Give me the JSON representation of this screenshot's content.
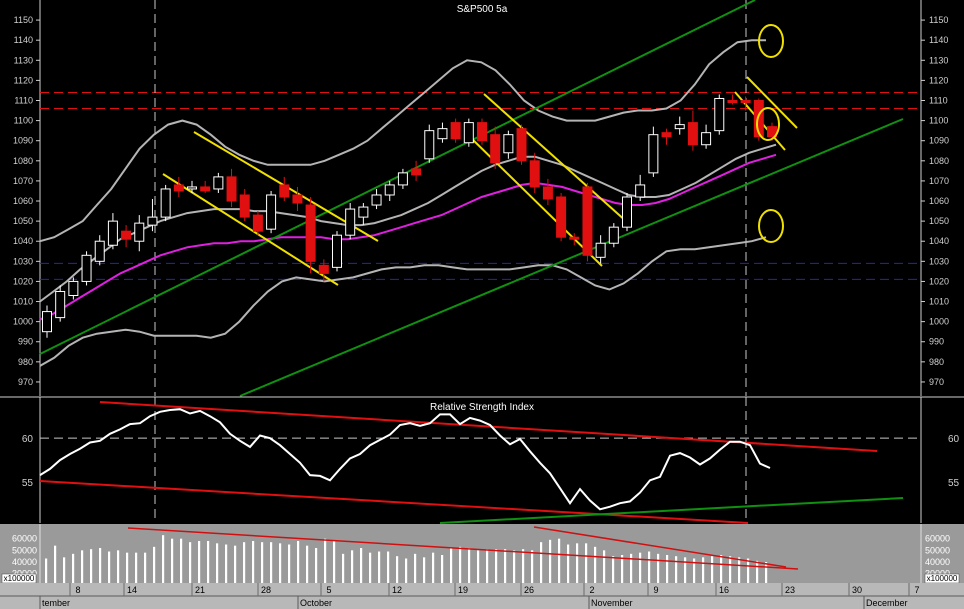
{
  "colors": {
    "background": "#000000",
    "axis_text": "#d0d0d0",
    "bullish_candle": "#ffffff",
    "bearish_candle": "#e01010",
    "bollinger": "#b4b4b4",
    "moving_average": "#e020e0",
    "trend_channel": "#109010",
    "flag_lines": "#f0e000",
    "resistance": "#e01010",
    "support": "#2020d0",
    "rsi_line": "#ffffff",
    "volume_panel_bg": "#9a9a9a",
    "volume_bars": "#ffffff",
    "volume_trend": "#d01010",
    "date_strip_bg": "#b8b8b8"
  },
  "chart_data": [
    {
      "type": "candlestick",
      "title": "S&P500 5a",
      "ylim": [
        965,
        1158
      ],
      "yticks": [
        970,
        980,
        990,
        1000,
        1010,
        1020,
        1030,
        1040,
        1050,
        1060,
        1070,
        1080,
        1090,
        1100,
        1110,
        1120,
        1130,
        1140,
        1150
      ],
      "candles": [
        {
          "o": 995,
          "h": 1008,
          "l": 992,
          "c": 1005
        },
        {
          "o": 1002,
          "h": 1018,
          "l": 1000,
          "c": 1015
        },
        {
          "o": 1013,
          "h": 1022,
          "l": 1011,
          "c": 1020
        },
        {
          "o": 1020,
          "h": 1035,
          "l": 1018,
          "c": 1033
        },
        {
          "o": 1030,
          "h": 1043,
          "l": 1028,
          "c": 1040
        },
        {
          "o": 1038,
          "h": 1054,
          "l": 1036,
          "c": 1050
        },
        {
          "o": 1045,
          "h": 1048,
          "l": 1037,
          "c": 1041
        },
        {
          "o": 1040,
          "h": 1053,
          "l": 1035,
          "c": 1049
        },
        {
          "o": 1048,
          "h": 1061,
          "l": 1045,
          "c": 1052
        },
        {
          "o": 1052,
          "h": 1068,
          "l": 1050,
          "c": 1066
        },
        {
          "o": 1068,
          "h": 1072,
          "l": 1062,
          "c": 1065
        },
        {
          "o": 1066,
          "h": 1070,
          "l": 1064,
          "c": 1067
        },
        {
          "o": 1067,
          "h": 1070,
          "l": 1064,
          "c": 1065
        },
        {
          "o": 1066,
          "h": 1074,
          "l": 1064,
          "c": 1072
        },
        {
          "o": 1072,
          "h": 1076,
          "l": 1057,
          "c": 1060
        },
        {
          "o": 1063,
          "h": 1066,
          "l": 1050,
          "c": 1052
        },
        {
          "o": 1053,
          "h": 1055,
          "l": 1043,
          "c": 1045
        },
        {
          "o": 1046,
          "h": 1065,
          "l": 1044,
          "c": 1063
        },
        {
          "o": 1068,
          "h": 1072,
          "l": 1060,
          "c": 1062
        },
        {
          "o": 1063,
          "h": 1067,
          "l": 1055,
          "c": 1059
        },
        {
          "o": 1058,
          "h": 1062,
          "l": 1024,
          "c": 1030
        },
        {
          "o": 1028,
          "h": 1031,
          "l": 1020,
          "c": 1024
        },
        {
          "o": 1027,
          "h": 1045,
          "l": 1025,
          "c": 1043
        },
        {
          "o": 1043,
          "h": 1059,
          "l": 1041,
          "c": 1056
        },
        {
          "o": 1052,
          "h": 1059,
          "l": 1048,
          "c": 1057
        },
        {
          "o": 1058,
          "h": 1066,
          "l": 1056,
          "c": 1063
        },
        {
          "o": 1063,
          "h": 1070,
          "l": 1060,
          "c": 1068
        },
        {
          "o": 1068,
          "h": 1076,
          "l": 1066,
          "c": 1074
        },
        {
          "o": 1076,
          "h": 1080,
          "l": 1070,
          "c": 1073
        },
        {
          "o": 1081,
          "h": 1098,
          "l": 1079,
          "c": 1095
        },
        {
          "o": 1091,
          "h": 1099,
          "l": 1089,
          "c": 1096
        },
        {
          "o": 1099,
          "h": 1101,
          "l": 1089,
          "c": 1091
        },
        {
          "o": 1089,
          "h": 1101,
          "l": 1087,
          "c": 1099
        },
        {
          "o": 1099,
          "h": 1101,
          "l": 1088,
          "c": 1090
        },
        {
          "o": 1093,
          "h": 1097,
          "l": 1076,
          "c": 1079
        },
        {
          "o": 1084,
          "h": 1095,
          "l": 1081,
          "c": 1093
        },
        {
          "o": 1096,
          "h": 1098,
          "l": 1078,
          "c": 1080
        },
        {
          "o": 1080,
          "h": 1084,
          "l": 1064,
          "c": 1067
        },
        {
          "o": 1067,
          "h": 1071,
          "l": 1058,
          "c": 1061
        },
        {
          "o": 1062,
          "h": 1064,
          "l": 1040,
          "c": 1042
        },
        {
          "o": 1042,
          "h": 1044,
          "l": 1038,
          "c": 1041
        },
        {
          "o": 1067,
          "h": 1069,
          "l": 1030,
          "c": 1033
        },
        {
          "o": 1032,
          "h": 1043,
          "l": 1029,
          "c": 1039
        },
        {
          "o": 1039,
          "h": 1049,
          "l": 1037,
          "c": 1047
        },
        {
          "o": 1047,
          "h": 1064,
          "l": 1045,
          "c": 1062
        },
        {
          "o": 1062,
          "h": 1073,
          "l": 1060,
          "c": 1068
        },
        {
          "o": 1074,
          "h": 1097,
          "l": 1072,
          "c": 1093
        },
        {
          "o": 1094,
          "h": 1096,
          "l": 1088,
          "c": 1092
        },
        {
          "o": 1096,
          "h": 1102,
          "l": 1093,
          "c": 1098
        },
        {
          "o": 1099,
          "h": 1105,
          "l": 1085,
          "c": 1088
        },
        {
          "o": 1088,
          "h": 1098,
          "l": 1086,
          "c": 1094
        },
        {
          "o": 1095,
          "h": 1113,
          "l": 1093,
          "c": 1111
        },
        {
          "o": 1110,
          "h": 1113,
          "l": 1108,
          "c": 1109
        },
        {
          "o": 1110,
          "h": 1112,
          "l": 1105,
          "c": 1109
        },
        {
          "o": 1110,
          "h": 1111,
          "l": 1090,
          "c": 1092
        },
        {
          "o": 1097,
          "h": 1099,
          "l": 1090,
          "c": 1092
        }
      ],
      "overlays": {
        "moving_average": [
          1001,
          1004,
          1008,
          1012,
          1016,
          1020,
          1024,
          1027,
          1030,
          1033,
          1035,
          1037,
          1038,
          1039,
          1039,
          1040,
          1040,
          1041,
          1042,
          1042,
          1042,
          1042,
          1041,
          1041,
          1042,
          1043,
          1045,
          1047,
          1049,
          1051,
          1053,
          1056,
          1059,
          1062,
          1064,
          1066,
          1068,
          1069,
          1068,
          1067,
          1065,
          1063,
          1061,
          1059,
          1058,
          1058,
          1059,
          1061,
          1064,
          1067,
          1070,
          1073,
          1076,
          1079,
          1081,
          1083
        ],
        "bollinger_mid": [
          1010,
          1015,
          1020,
          1026,
          1031,
          1036,
          1041,
          1044,
          1047,
          1050,
          1052,
          1054,
          1055,
          1056,
          1056,
          1056,
          1055,
          1055,
          1054,
          1053,
          1052,
          1050,
          1049,
          1048,
          1048,
          1049,
          1051,
          1053,
          1056,
          1059,
          1063,
          1067,
          1071,
          1075,
          1078,
          1080,
          1082,
          1082,
          1080,
          1078,
          1075,
          1072,
          1069,
          1066,
          1063,
          1062,
          1062,
          1063,
          1066,
          1069,
          1073,
          1077,
          1081,
          1084,
          1086,
          1088
        ],
        "bollinger_upper": [
          1040,
          1042,
          1046,
          1050,
          1058,
          1066,
          1076,
          1086,
          1093,
          1098,
          1100,
          1098,
          1093,
          1087,
          1083,
          1080,
          1078,
          1078,
          1078,
          1078,
          1080,
          1083,
          1086,
          1090,
          1096,
          1102,
          1108,
          1114,
          1120,
          1126,
          1130,
          1129,
          1125,
          1118,
          1110,
          1105,
          1102,
          1100,
          1100,
          1100,
          1102,
          1104,
          1105,
          1105,
          1106,
          1110,
          1118,
          1128,
          1134,
          1139,
          1140,
          1140
        ],
        "bollinger_lower": [
          978,
          982,
          988,
          992,
          994,
          995,
          996,
          995,
          993,
          993,
          993,
          993,
          992,
          994,
          1000,
          1008,
          1015,
          1020,
          1022,
          1021,
          1020,
          1021,
          1022,
          1024,
          1026,
          1027,
          1027,
          1028,
          1028,
          1027,
          1026,
          1026,
          1026,
          1026,
          1027,
          1028,
          1028,
          1026,
          1022,
          1018,
          1016,
          1019,
          1024,
          1030,
          1035,
          1036,
          1036,
          1037,
          1038,
          1039,
          1040,
          1042
        ]
      },
      "horizontal_lines": {
        "resistance": [
          1114,
          1106
        ],
        "support": [
          1029,
          1021
        ]
      }
    },
    {
      "type": "line",
      "title": "Relative Strength Index",
      "ylim": [
        50.8,
        64
      ],
      "yticks": [
        55,
        60
      ],
      "reference_level": 60,
      "values": [
        55.8,
        56.5,
        57.5,
        58.2,
        58.8,
        59.5,
        59.7,
        60.5,
        61.0,
        61.6,
        61.7,
        62.5,
        63.0,
        63.2,
        63.3,
        62.8,
        63.1,
        62.5,
        61.8,
        60.5,
        59.7,
        59.0,
        60.3,
        60.0,
        59.2,
        58.2,
        57.2,
        55.8,
        55.7,
        55.2,
        56.5,
        57.7,
        58.2,
        59.2,
        59.8,
        60.4,
        61.5,
        61.7,
        61.4,
        61.7,
        62.7,
        62.7,
        61.6,
        62.3,
        62.0,
        61.5,
        60.3,
        59.3,
        59.9,
        58.5,
        57.2,
        56.0,
        54.3,
        52.6,
        54.2,
        52.9,
        51.9,
        52.2,
        52.6,
        52.8,
        53.8,
        55.2,
        55.6,
        58.0,
        58.3,
        57.8,
        57.0,
        57.7,
        58.7,
        59.6,
        59.6,
        59.2,
        57.1,
        56.6
      ]
    },
    {
      "type": "bar",
      "title": "",
      "ylabel": "x100000",
      "ylim": [
        22000,
        70000
      ],
      "yticks": [
        30000,
        40000,
        50000,
        60000
      ],
      "values": [
        43000,
        54000,
        44000,
        47000,
        50000,
        51000,
        52000,
        49000,
        50000,
        48000,
        48000,
        48000,
        53000,
        63000,
        60000,
        60000,
        57000,
        58000,
        58000,
        56000,
        55000,
        54000,
        57000,
        58000,
        57000,
        57000,
        56000,
        55000,
        58000,
        54000,
        52000,
        60000,
        58000,
        47000,
        50000,
        52000,
        48000,
        49000,
        49000,
        45000,
        43000,
        47000,
        44000,
        48000,
        46000,
        52000,
        53000,
        52000,
        50000,
        51000,
        51000,
        51000,
        50000,
        51000,
        50000,
        57000,
        59000,
        60000,
        55000,
        56000,
        56000,
        53000,
        50000,
        45000,
        46000,
        47000,
        48000,
        49000,
        47000,
        46000,
        45000,
        44000,
        43000,
        44000,
        45000,
        46000,
        45000,
        44000,
        43000,
        41000,
        40000
      ],
      "trendlines": 2
    }
  ],
  "date_axis": {
    "day_labels": [
      "8",
      "14",
      "21",
      "28",
      "5",
      "12",
      "19",
      "26",
      "2",
      "9",
      "16",
      "23",
      "30",
      "7"
    ],
    "month_labels": [
      "tember",
      "October",
      "November",
      "December"
    ]
  }
}
